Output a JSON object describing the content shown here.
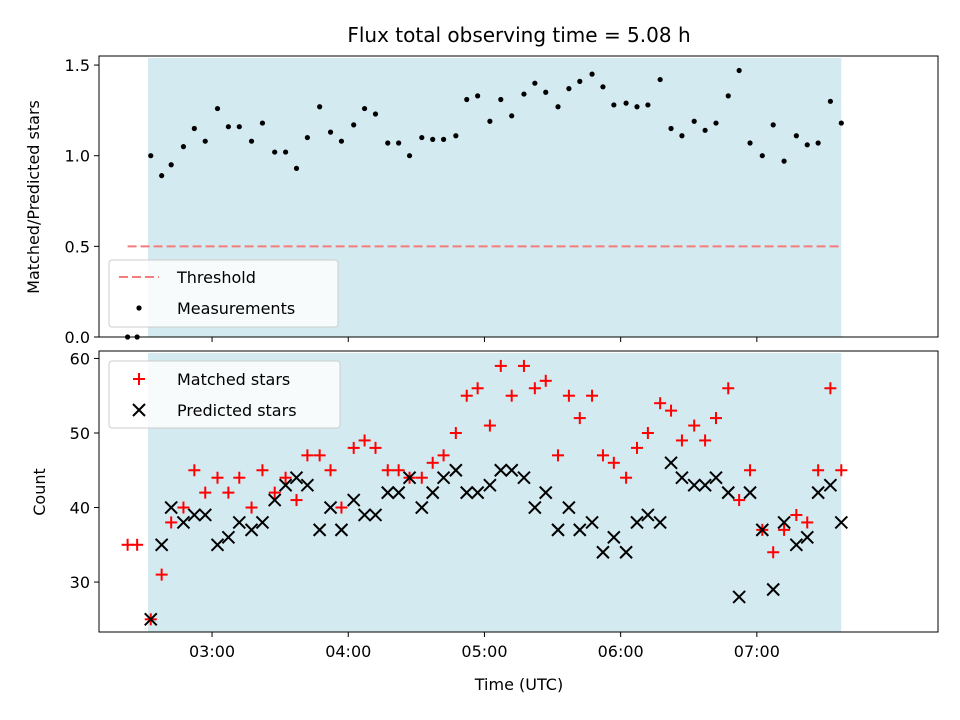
{
  "chart_data": {
    "title": "Flux total observing time = 5.08 h",
    "xlabel": "Time (UTC)",
    "x_ticks": [
      "03:00",
      "04:00",
      "05:00",
      "06:00",
      "07:00"
    ],
    "x_range_hours": [
      2.17,
      8.33
    ],
    "observing_window_hours": [
      2.53,
      7.62
    ],
    "shade_color": "#d4eaf1",
    "panels": [
      {
        "type": "scatter",
        "ylabel": "Matched/Predicted stars",
        "ylim": [
          0.0,
          1.55
        ],
        "yticks": [
          0.0,
          0.5,
          1.0,
          1.5
        ],
        "threshold": {
          "name": "Threshold",
          "value": 0.5,
          "x_range_hours": [
            2.38,
            7.6
          ],
          "color": "#f47c7c"
        },
        "legend_position": "lower-left",
        "series": [
          {
            "name": "Measurements",
            "marker": "dot",
            "color": "#000000",
            "points": [
              [
                2.38,
                0.0
              ],
              [
                2.45,
                0.0
              ],
              [
                2.55,
                1.0
              ],
              [
                2.63,
                0.89
              ],
              [
                2.7,
                0.95
              ],
              [
                2.79,
                1.05
              ],
              [
                2.87,
                1.15
              ],
              [
                2.95,
                1.08
              ],
              [
                3.04,
                1.26
              ],
              [
                3.12,
                1.16
              ],
              [
                3.2,
                1.16
              ],
              [
                3.29,
                1.08
              ],
              [
                3.37,
                1.18
              ],
              [
                3.46,
                1.02
              ],
              [
                3.54,
                1.02
              ],
              [
                3.62,
                0.93
              ],
              [
                3.7,
                1.1
              ],
              [
                3.79,
                1.27
              ],
              [
                3.87,
                1.13
              ],
              [
                3.95,
                1.08
              ],
              [
                4.04,
                1.17
              ],
              [
                4.12,
                1.26
              ],
              [
                4.2,
                1.23
              ],
              [
                4.29,
                1.07
              ],
              [
                4.37,
                1.07
              ],
              [
                4.45,
                1.0
              ],
              [
                4.54,
                1.1
              ],
              [
                4.62,
                1.09
              ],
              [
                4.7,
                1.09
              ],
              [
                4.79,
                1.11
              ],
              [
                4.87,
                1.31
              ],
              [
                4.95,
                1.33
              ],
              [
                5.04,
                1.19
              ],
              [
                5.12,
                1.31
              ],
              [
                5.2,
                1.22
              ],
              [
                5.29,
                1.34
              ],
              [
                5.37,
                1.4
              ],
              [
                5.45,
                1.35
              ],
              [
                5.54,
                1.27
              ],
              [
                5.62,
                1.37
              ],
              [
                5.7,
                1.41
              ],
              [
                5.79,
                1.45
              ],
              [
                5.87,
                1.38
              ],
              [
                5.95,
                1.28
              ],
              [
                6.04,
                1.29
              ],
              [
                6.12,
                1.27
              ],
              [
                6.2,
                1.28
              ],
              [
                6.29,
                1.42
              ],
              [
                6.37,
                1.15
              ],
              [
                6.45,
                1.11
              ],
              [
                6.54,
                1.19
              ],
              [
                6.62,
                1.14
              ],
              [
                6.7,
                1.18
              ],
              [
                6.79,
                1.33
              ],
              [
                6.87,
                1.47
              ],
              [
                6.95,
                1.07
              ],
              [
                7.04,
                1.0
              ],
              [
                7.12,
                1.17
              ],
              [
                7.2,
                0.97
              ],
              [
                7.29,
                1.11
              ],
              [
                7.37,
                1.06
              ],
              [
                7.45,
                1.07
              ],
              [
                7.54,
                1.3
              ],
              [
                7.62,
                1.18
              ]
            ]
          }
        ]
      },
      {
        "type": "scatter",
        "ylabel": "Count",
        "ylim": [
          23.3,
          61.0
        ],
        "yticks": [
          30,
          40,
          50,
          60
        ],
        "legend_position": "upper-left",
        "series": [
          {
            "name": "Matched stars",
            "marker": "plus",
            "color": "#ff0000",
            "points": [
              [
                2.38,
                35
              ],
              [
                2.45,
                35
              ],
              [
                2.55,
                25
              ],
              [
                2.63,
                31
              ],
              [
                2.7,
                38
              ],
              [
                2.79,
                40
              ],
              [
                2.87,
                45
              ],
              [
                2.95,
                42
              ],
              [
                3.04,
                44
              ],
              [
                3.12,
                42
              ],
              [
                3.2,
                44
              ],
              [
                3.29,
                40
              ],
              [
                3.37,
                45
              ],
              [
                3.46,
                42
              ],
              [
                3.54,
                44
              ],
              [
                3.62,
                41
              ],
              [
                3.7,
                47
              ],
              [
                3.79,
                47
              ],
              [
                3.87,
                45
              ],
              [
                3.95,
                40
              ],
              [
                4.04,
                48
              ],
              [
                4.12,
                49
              ],
              [
                4.2,
                48
              ],
              [
                4.29,
                45
              ],
              [
                4.37,
                45
              ],
              [
                4.45,
                44
              ],
              [
                4.54,
                44
              ],
              [
                4.62,
                46
              ],
              [
                4.7,
                47
              ],
              [
                4.79,
                50
              ],
              [
                4.87,
                55
              ],
              [
                4.95,
                56
              ],
              [
                5.04,
                51
              ],
              [
                5.12,
                59
              ],
              [
                5.2,
                55
              ],
              [
                5.29,
                59
              ],
              [
                5.37,
                56
              ],
              [
                5.45,
                57
              ],
              [
                5.54,
                47
              ],
              [
                5.62,
                55
              ],
              [
                5.7,
                52
              ],
              [
                5.79,
                55
              ],
              [
                5.87,
                47
              ],
              [
                5.95,
                46
              ],
              [
                6.04,
                44
              ],
              [
                6.12,
                48
              ],
              [
                6.2,
                50
              ],
              [
                6.29,
                54
              ],
              [
                6.37,
                53
              ],
              [
                6.45,
                49
              ],
              [
                6.54,
                51
              ],
              [
                6.62,
                49
              ],
              [
                6.7,
                52
              ],
              [
                6.79,
                56
              ],
              [
                6.87,
                41
              ],
              [
                6.95,
                45
              ],
              [
                7.04,
                37
              ],
              [
                7.12,
                34
              ],
              [
                7.2,
                37
              ],
              [
                7.29,
                39
              ],
              [
                7.37,
                38
              ],
              [
                7.45,
                45
              ],
              [
                7.54,
                56
              ],
              [
                7.62,
                45
              ]
            ]
          },
          {
            "name": "Predicted stars",
            "marker": "x",
            "color": "#000000",
            "points": [
              [
                2.55,
                25
              ],
              [
                2.63,
                35
              ],
              [
                2.7,
                40
              ],
              [
                2.79,
                38
              ],
              [
                2.87,
                39
              ],
              [
                2.95,
                39
              ],
              [
                3.04,
                35
              ],
              [
                3.12,
                36
              ],
              [
                3.2,
                38
              ],
              [
                3.29,
                37
              ],
              [
                3.37,
                38
              ],
              [
                3.46,
                41
              ],
              [
                3.54,
                43
              ],
              [
                3.62,
                44
              ],
              [
                3.7,
                43
              ],
              [
                3.79,
                37
              ],
              [
                3.87,
                40
              ],
              [
                3.95,
                37
              ],
              [
                4.04,
                41
              ],
              [
                4.12,
                39
              ],
              [
                4.2,
                39
              ],
              [
                4.29,
                42
              ],
              [
                4.37,
                42
              ],
              [
                4.45,
                44
              ],
              [
                4.54,
                40
              ],
              [
                4.62,
                42
              ],
              [
                4.7,
                44
              ],
              [
                4.79,
                45
              ],
              [
                4.87,
                42
              ],
              [
                4.95,
                42
              ],
              [
                5.04,
                43
              ],
              [
                5.12,
                45
              ],
              [
                5.2,
                45
              ],
              [
                5.29,
                44
              ],
              [
                5.37,
                40
              ],
              [
                5.45,
                42
              ],
              [
                5.54,
                37
              ],
              [
                5.62,
                40
              ],
              [
                5.7,
                37
              ],
              [
                5.79,
                38
              ],
              [
                5.87,
                34
              ],
              [
                5.95,
                36
              ],
              [
                6.04,
                34
              ],
              [
                6.12,
                38
              ],
              [
                6.2,
                39
              ],
              [
                6.29,
                38
              ],
              [
                6.37,
                46
              ],
              [
                6.45,
                44
              ],
              [
                6.54,
                43
              ],
              [
                6.62,
                43
              ],
              [
                6.7,
                44
              ],
              [
                6.79,
                42
              ],
              [
                6.87,
                28
              ],
              [
                6.95,
                42
              ],
              [
                7.04,
                37
              ],
              [
                7.12,
                29
              ],
              [
                7.2,
                38
              ],
              [
                7.29,
                35
              ],
              [
                7.37,
                36
              ],
              [
                7.45,
                42
              ],
              [
                7.54,
                43
              ],
              [
                7.62,
                38
              ]
            ]
          }
        ]
      }
    ]
  }
}
